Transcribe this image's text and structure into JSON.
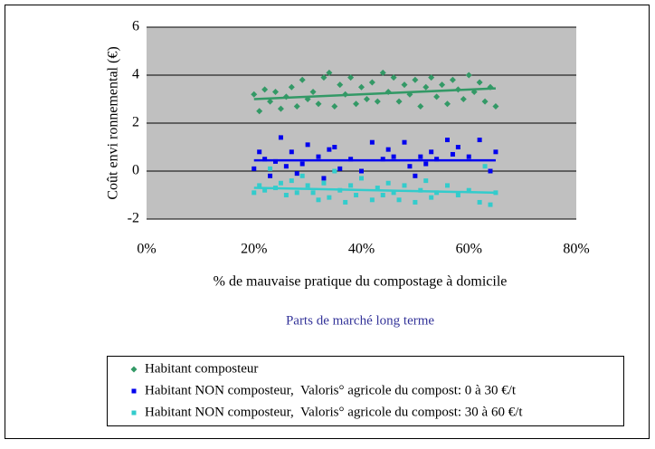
{
  "chart_data": {
    "type": "scatter",
    "x_label": "% de mauvaise pratique du compostage à domicile",
    "y_label": "Coût envi ronnemental (€)",
    "caption": "Parts de marché long terme",
    "xlim": [
      0,
      80
    ],
    "xticks": [
      {
        "value": 0,
        "label": "0%"
      },
      {
        "value": 20,
        "label": "20%"
      },
      {
        "value": 40,
        "label": "40%"
      },
      {
        "value": 60,
        "label": "60%"
      },
      {
        "value": 80,
        "label": "80%"
      }
    ],
    "ylim": [
      -2,
      6
    ],
    "yticks": [
      -2,
      0,
      2,
      4,
      6
    ],
    "grid": true,
    "legend": "bottom",
    "series": [
      {
        "name": "Habitant composteur",
        "color": "#339966",
        "marker": "diamond",
        "x": [
          20,
          21,
          22,
          23,
          24,
          25,
          26,
          27,
          28,
          29,
          30,
          31,
          32,
          33,
          34,
          35,
          36,
          37,
          38,
          39,
          40,
          41,
          42,
          43,
          44,
          45,
          46,
          47,
          48,
          49,
          50,
          51,
          52,
          53,
          54,
          55,
          56,
          57,
          58,
          59,
          60,
          61,
          62,
          63,
          64,
          65
        ],
        "values": [
          3.2,
          2.5,
          3.4,
          2.9,
          3.3,
          2.6,
          3.1,
          3.5,
          2.7,
          3.8,
          3.0,
          3.3,
          2.8,
          3.9,
          4.1,
          2.7,
          3.6,
          3.2,
          3.9,
          2.8,
          3.5,
          3.0,
          3.7,
          2.9,
          4.1,
          3.3,
          3.9,
          2.9,
          3.6,
          3.2,
          3.8,
          2.7,
          3.5,
          3.9,
          3.1,
          3.6,
          2.8,
          3.8,
          3.4,
          3.0,
          4.0,
          3.3,
          3.7,
          2.9,
          3.5,
          2.7
        ],
        "trendline": {
          "x": [
            20,
            65
          ],
          "values": [
            3.0,
            3.45
          ]
        }
      },
      {
        "name": "Habitant NON composteur,  Valoris° agricole du compost: 0 à 30 €/t",
        "color": "#0000ee",
        "marker": "square",
        "x": [
          20,
          21,
          22,
          23,
          24,
          25,
          26,
          27,
          28,
          29,
          30,
          32,
          33,
          34,
          35,
          36,
          38,
          40,
          42,
          44,
          45,
          46,
          48,
          49,
          50,
          51,
          52,
          53,
          54,
          56,
          57,
          58,
          60,
          62,
          64,
          65
        ],
        "values": [
          0.1,
          0.8,
          0.5,
          -0.2,
          0.4,
          1.4,
          0.2,
          0.8,
          -0.1,
          0.3,
          1.1,
          0.6,
          -0.3,
          0.9,
          1.0,
          0.1,
          0.5,
          0.0,
          1.2,
          0.5,
          0.9,
          0.6,
          1.2,
          0.2,
          -0.2,
          0.6,
          0.3,
          0.8,
          0.5,
          1.3,
          0.7,
          1.0,
          0.6,
          1.3,
          0.0,
          0.8
        ],
        "trendline": {
          "x": [
            20,
            65
          ],
          "values": [
            0.45,
            0.45
          ]
        }
      },
      {
        "name": "Habitant NON composteur,  Valoris° agricole du compost: 30 à 60 €/t",
        "color": "#33cccc",
        "marker": "square",
        "x": [
          20,
          21,
          22,
          23,
          24,
          25,
          26,
          27,
          28,
          29,
          30,
          31,
          32,
          33,
          34,
          35,
          36,
          37,
          38,
          39,
          40,
          42,
          43,
          44,
          45,
          46,
          47,
          48,
          50,
          51,
          52,
          53,
          54,
          56,
          58,
          60,
          62,
          63,
          64,
          65
        ],
        "values": [
          -0.9,
          -0.6,
          -0.8,
          0.1,
          -0.7,
          -0.5,
          -1.0,
          -0.4,
          -0.9,
          -0.2,
          -0.6,
          -0.9,
          -1.2,
          -0.5,
          -1.1,
          0.0,
          -0.8,
          -1.3,
          -0.6,
          -1.0,
          -0.3,
          -1.2,
          -0.7,
          -1.0,
          -0.5,
          -0.9,
          -1.2,
          -0.6,
          -1.3,
          -0.8,
          -0.4,
          -1.1,
          -0.9,
          -0.6,
          -1.0,
          -0.8,
          -1.3,
          0.2,
          -1.4,
          -0.9
        ],
        "trendline": {
          "x": [
            20,
            65
          ],
          "values": [
            -0.7,
            -0.9
          ]
        }
      }
    ]
  }
}
